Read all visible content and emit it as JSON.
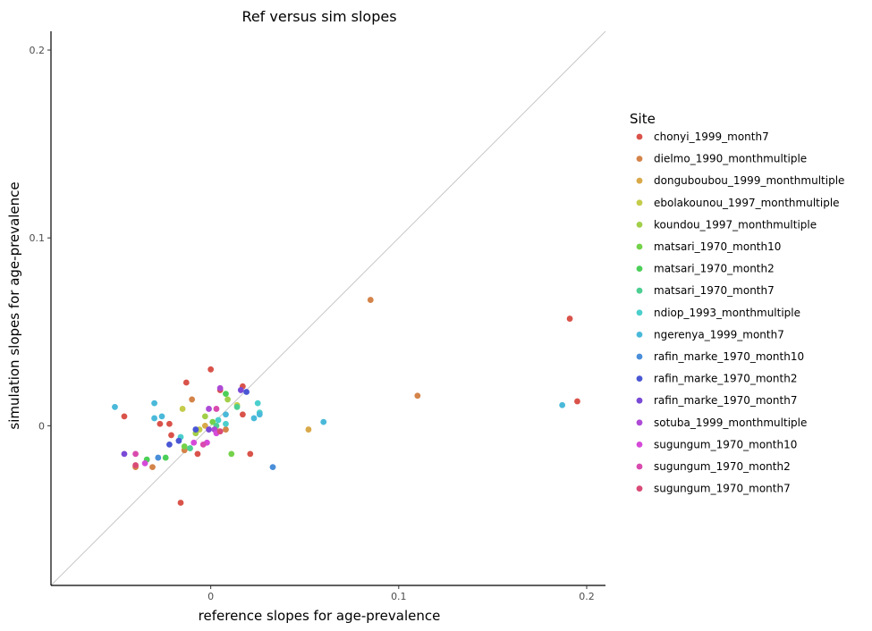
{
  "chart_data": {
    "type": "scatter",
    "title": "Ref versus sim slopes",
    "xlabel": "reference slopes for age-prevalence",
    "ylabel": "simulation slopes for age-prevalence",
    "xlim": [
      -0.085,
      0.21
    ],
    "ylim": [
      -0.085,
      0.21
    ],
    "x_ticks": [
      0,
      0.1,
      0.2
    ],
    "x_tick_labels": [
      "0",
      "0.1",
      "0.2"
    ],
    "y_ticks": [
      0,
      0.1,
      0.2
    ],
    "y_tick_labels": [
      "0",
      "0.1",
      "0.2"
    ],
    "grid": false,
    "reference_line": "y = x",
    "legend_title": "Site",
    "legend_position": "right",
    "series": [
      {
        "name": "chonyi_1999_month7",
        "color": "#d9534a",
        "points": [
          [
            0.191,
            0.057
          ],
          [
            0.195,
            0.013
          ],
          [
            -0.046,
            0.005
          ],
          [
            -0.027,
            0.001
          ],
          [
            -0.022,
            0.001
          ],
          [
            -0.021,
            -0.005
          ],
          [
            -0.013,
            0.023
          ],
          [
            0,
            0.03
          ],
          [
            0.017,
            0.021
          ],
          [
            0.017,
            0.006
          ],
          [
            0.021,
            -0.015
          ],
          [
            -0.007,
            -0.015
          ],
          [
            -0.016,
            -0.041
          ],
          [
            0.005,
            0.019
          ]
        ]
      },
      {
        "name": "dielmo_1990_monthmultiple",
        "color": "#d4844a",
        "points": [
          [
            0.085,
            0.067
          ],
          [
            0.11,
            0.016
          ],
          [
            -0.01,
            0.014
          ],
          [
            -0.04,
            -0.022
          ],
          [
            -0.031,
            -0.022
          ],
          [
            -0.014,
            -0.013
          ],
          [
            0.008,
            -0.002
          ]
        ]
      },
      {
        "name": "donguboubou_1999_monthmultiple",
        "color": "#d9a94a",
        "points": [
          [
            0.052,
            -0.002
          ],
          [
            -0.003,
            0.0
          ],
          [
            0.004,
            -0.003
          ]
        ]
      },
      {
        "name": "ebolakounou_1997_monthmultiple",
        "color": "#c4cc4a",
        "points": [
          [
            -0.015,
            0.009
          ],
          [
            -0.006,
            -0.002
          ],
          [
            0.014,
            0.011
          ]
        ]
      },
      {
        "name": "koundou_1997_monthmultiple",
        "color": "#a2cf4a",
        "points": [
          [
            -0.003,
            0.005
          ],
          [
            -0.008,
            -0.004
          ],
          [
            0.009,
            0.014
          ]
        ]
      },
      {
        "name": "matsari_1970_month10",
        "color": "#74d24a",
        "points": [
          [
            0.011,
            -0.015
          ],
          [
            -0.014,
            -0.011
          ],
          [
            0.001,
            0.002
          ]
        ]
      },
      {
        "name": "matsari_1970_month2",
        "color": "#4ccf58",
        "points": [
          [
            -0.024,
            -0.017
          ],
          [
            -0.034,
            -0.018
          ],
          [
            0.008,
            0.017
          ]
        ]
      },
      {
        "name": "matsari_1970_month7",
        "color": "#4dcf92",
        "points": [
          [
            -0.011,
            -0.012
          ],
          [
            0.014,
            0.01
          ],
          [
            0.003,
            0.0
          ]
        ]
      },
      {
        "name": "ndiop_1993_monthmultiple",
        "color": "#4ccfcc",
        "points": [
          [
            0.025,
            0.012
          ],
          [
            0.026,
            0.007
          ],
          [
            0.004,
            0.003
          ],
          [
            -0.016,
            -0.006
          ],
          [
            0.008,
            0.001
          ]
        ]
      },
      {
        "name": "ngerenya_1999_month7",
        "color": "#4ab9d9",
        "points": [
          [
            -0.051,
            0.01
          ],
          [
            -0.03,
            0.012
          ],
          [
            -0.03,
            0.004
          ],
          [
            -0.026,
            0.005
          ],
          [
            0.008,
            0.006
          ],
          [
            0.023,
            0.004
          ],
          [
            0.06,
            0.002
          ],
          [
            0.187,
            0.011
          ],
          [
            0.026,
            0.006
          ]
        ]
      },
      {
        "name": "rafin_marke_1970_month10",
        "color": "#4a8ed9",
        "points": [
          [
            0.033,
            -0.022
          ],
          [
            -0.028,
            -0.017
          ]
        ]
      },
      {
        "name": "rafin_marke_1970_month2",
        "color": "#4a57d4",
        "points": [
          [
            -0.022,
            -0.01
          ],
          [
            -0.017,
            -0.008
          ],
          [
            -0.008,
            -0.002
          ],
          [
            0.019,
            0.018
          ]
        ]
      },
      {
        "name": "rafin_marke_1970_month7",
        "color": "#7a4ad6",
        "points": [
          [
            -0.046,
            -0.015
          ],
          [
            0.016,
            0.019
          ],
          [
            -0.001,
            -0.002
          ]
        ]
      },
      {
        "name": "sotuba_1999_monthmultiple",
        "color": "#ad4ad6",
        "points": [
          [
            0.005,
            0.02
          ],
          [
            -0.001,
            0.009
          ],
          [
            0.002,
            -0.002
          ]
        ]
      },
      {
        "name": "sugungum_1970_month10",
        "color": "#d64ad9",
        "points": [
          [
            -0.009,
            -0.009
          ],
          [
            -0.002,
            -0.009
          ],
          [
            0.003,
            -0.004
          ],
          [
            -0.035,
            -0.02
          ]
        ]
      },
      {
        "name": "sugungum_1970_month2",
        "color": "#d94aae",
        "points": [
          [
            -0.04,
            -0.015
          ],
          [
            0.003,
            0.009
          ],
          [
            -0.004,
            -0.01
          ]
        ]
      },
      {
        "name": "sugungum_1970_month7",
        "color": "#d94a77",
        "points": [
          [
            -0.04,
            -0.021
          ],
          [
            0.005,
            -0.003
          ]
        ]
      }
    ]
  }
}
